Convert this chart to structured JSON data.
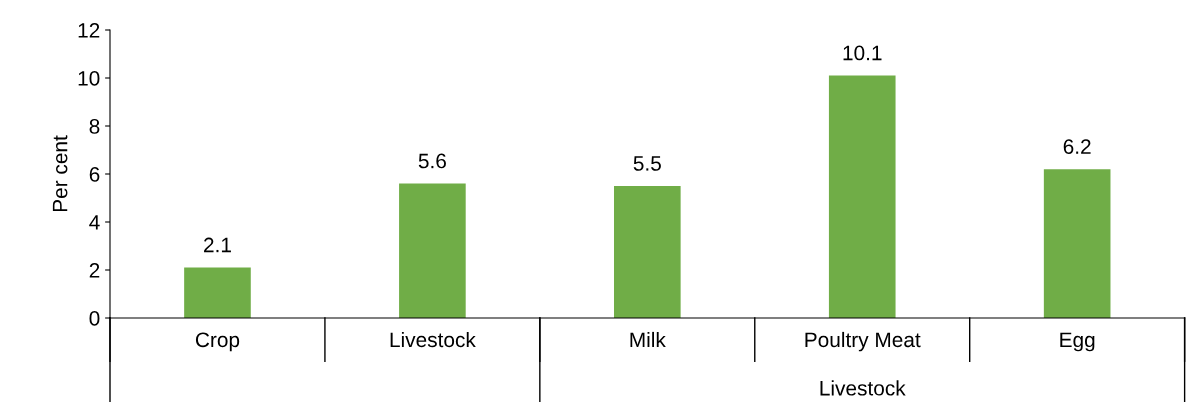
{
  "chart_data": {
    "type": "bar",
    "ylabel": "Per cent",
    "categories": [
      "Crop",
      "Livestock",
      "Milk",
      "Poultry Meat",
      "Egg"
    ],
    "values": [
      2.1,
      5.6,
      5.5,
      10.1,
      6.2
    ],
    "color": "#70ad47",
    "ylim": [
      0,
      12
    ],
    "yticks": [
      0,
      2,
      4,
      6,
      8,
      10,
      12
    ],
    "grid": false,
    "data_labels": true,
    "annotations": [
      "Livestock"
    ]
  }
}
